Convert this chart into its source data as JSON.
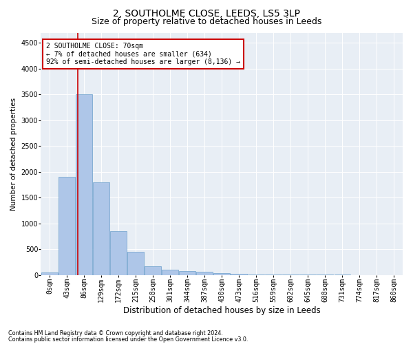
{
  "title": "2, SOUTHOLME CLOSE, LEEDS, LS5 3LP",
  "subtitle": "Size of property relative to detached houses in Leeds",
  "xlabel": "Distribution of detached houses by size in Leeds",
  "ylabel": "Number of detached properties",
  "bin_labels": [
    "0sqm",
    "43sqm",
    "86sqm",
    "129sqm",
    "172sqm",
    "215sqm",
    "258sqm",
    "301sqm",
    "344sqm",
    "387sqm",
    "430sqm",
    "473sqm",
    "516sqm",
    "559sqm",
    "602sqm",
    "645sqm",
    "688sqm",
    "731sqm",
    "774sqm",
    "817sqm",
    "860sqm"
  ],
  "bar_values": [
    50,
    1900,
    3500,
    1800,
    850,
    450,
    170,
    100,
    75,
    55,
    40,
    20,
    10,
    5,
    3,
    2,
    1,
    1,
    0,
    0,
    0
  ],
  "bar_color": "#aec6e8",
  "bar_edge_color": "#6a9fcb",
  "vline_color": "#cc0000",
  "annotation_text": "2 SOUTHOLME CLOSE: 70sqm\n← 7% of detached houses are smaller (634)\n92% of semi-detached houses are larger (8,136) →",
  "annotation_box_color": "#ffffff",
  "annotation_box_edge": "#cc0000",
  "ylim": [
    0,
    4700
  ],
  "yticks": [
    0,
    500,
    1000,
    1500,
    2000,
    2500,
    3000,
    3500,
    4000,
    4500
  ],
  "background_color": "#e8eef5",
  "footer_line1": "Contains HM Land Registry data © Crown copyright and database right 2024.",
  "footer_line2": "Contains public sector information licensed under the Open Government Licence v3.0.",
  "title_fontsize": 10,
  "subtitle_fontsize": 9,
  "xlabel_fontsize": 8.5,
  "ylabel_fontsize": 7.5,
  "tick_fontsize": 7,
  "annotation_fontsize": 7
}
